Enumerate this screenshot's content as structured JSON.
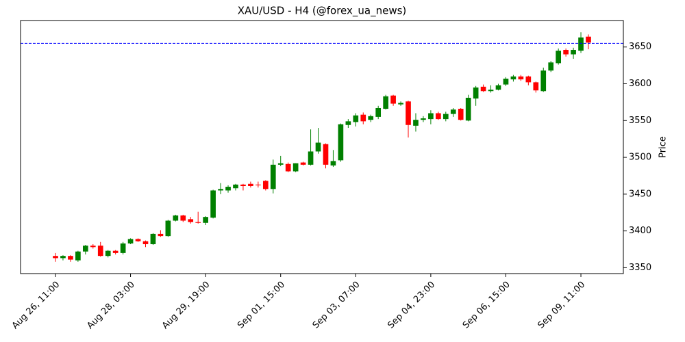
{
  "chart_data": {
    "type": "candlestick",
    "title": "XAU/USD - H4 (@forex_ua_news)",
    "y_label": "Price",
    "categories": [
      "Aug 26, 11:00",
      null,
      null,
      null,
      null,
      null,
      null,
      null,
      null,
      null,
      "Aug 28, 03:00",
      null,
      null,
      null,
      null,
      null,
      null,
      null,
      null,
      null,
      "Aug 29, 19:00",
      null,
      null,
      null,
      null,
      null,
      null,
      null,
      null,
      null,
      "Sep 01, 15:00",
      null,
      null,
      null,
      null,
      null,
      null,
      null,
      null,
      null,
      "Sep 03, 07:00",
      null,
      null,
      null,
      null,
      null,
      null,
      null,
      null,
      null,
      "Sep 04, 23:00",
      null,
      null,
      null,
      null,
      null,
      null,
      null,
      null,
      null,
      "Sep 06, 15:00",
      null,
      null,
      null,
      null,
      null,
      null,
      null,
      null,
      null,
      "Sep 09, 11:00",
      null
    ],
    "open": [
      3366,
      3363,
      3366,
      3360,
      3372,
      3380,
      3380,
      3366,
      3373,
      3370,
      3383,
      3389,
      3386,
      3382,
      3396,
      3393,
      3414,
      3421,
      3416,
      3412,
      3411,
      3418,
      3455,
      3455,
      3458,
      3463,
      3464,
      3463,
      3468,
      3457,
      3490,
      3491,
      3481,
      3493,
      3490,
      3508,
      3518,
      3489,
      3496,
      3544,
      3548,
      3558,
      3551,
      3555,
      3566,
      3584,
      3572,
      3576,
      3543,
      3551,
      3552,
      3560,
      3552,
      3559,
      3566,
      3550,
      3580,
      3596,
      3590,
      3592,
      3599,
      3606,
      3610,
      3610,
      3602,
      3590,
      3618,
      3628,
      3646,
      3640,
      3645,
      3664
    ],
    "high": [
      3370,
      3367,
      3367,
      3373,
      3381,
      3382,
      3385,
      3374,
      3374,
      3385,
      3390,
      3390,
      3387,
      3397,
      3401,
      3415,
      3422,
      3422,
      3419,
      3426,
      3420,
      3456,
      3465,
      3462,
      3464,
      3464,
      3467,
      3467,
      3469,
      3497,
      3502,
      3493,
      3492,
      3494,
      3538,
      3540,
      3519,
      3510,
      3546,
      3552,
      3560,
      3561,
      3558,
      3570,
      3585,
      3585,
      3576,
      3577,
      3560,
      3556,
      3564,
      3562,
      3562,
      3567,
      3567,
      3585,
      3597,
      3599,
      3598,
      3600,
      3609,
      3612,
      3612,
      3611,
      3603,
      3622,
      3631,
      3648,
      3648,
      3649,
      3670,
      3667
    ],
    "low": [
      3358,
      3360,
      3358,
      3358,
      3368,
      3376,
      3365,
      3364,
      3368,
      3368,
      3382,
      3385,
      3378,
      3381,
      3392,
      3392,
      3413,
      3412,
      3410,
      3410,
      3408,
      3417,
      3450,
      3452,
      3455,
      3455,
      3459,
      3459,
      3455,
      3451,
      3488,
      3480,
      3480,
      3489,
      3489,
      3505,
      3485,
      3487,
      3494,
      3540,
      3542,
      3545,
      3548,
      3552,
      3565,
      3570,
      3570,
      3527,
      3535,
      3548,
      3545,
      3551,
      3549,
      3555,
      3550,
      3549,
      3570,
      3589,
      3588,
      3591,
      3597,
      3603,
      3604,
      3598,
      3588,
      3589,
      3616,
      3626,
      3637,
      3634,
      3642,
      3647
    ],
    "close": [
      3363,
      3366,
      3361,
      3372,
      3380,
      3378,
      3366,
      3373,
      3370,
      3383,
      3389,
      3386,
      3382,
      3396,
      3393,
      3414,
      3421,
      3414,
      3412,
      3411,
      3419,
      3455,
      3457,
      3460,
      3463,
      3461,
      3461,
      3462,
      3457,
      3490,
      3492,
      3481,
      3492,
      3490,
      3508,
      3520,
      3490,
      3495,
      3545,
      3549,
      3557,
      3549,
      3556,
      3567,
      3583,
      3573,
      3574,
      3544,
      3551,
      3553,
      3560,
      3552,
      3559,
      3565,
      3551,
      3581,
      3595,
      3590,
      3592,
      3598,
      3607,
      3610,
      3606,
      3602,
      3591,
      3618,
      3629,
      3645,
      3640,
      3646,
      3663,
      3656
    ],
    "up_color": "#008000",
    "down_color": "#ff0000",
    "reference_line": 3655,
    "reference_color": "#0000ff",
    "ylim": [
      3342,
      3686
    ],
    "yticks": [
      3350,
      3400,
      3450,
      3500,
      3550,
      3600,
      3650
    ]
  }
}
